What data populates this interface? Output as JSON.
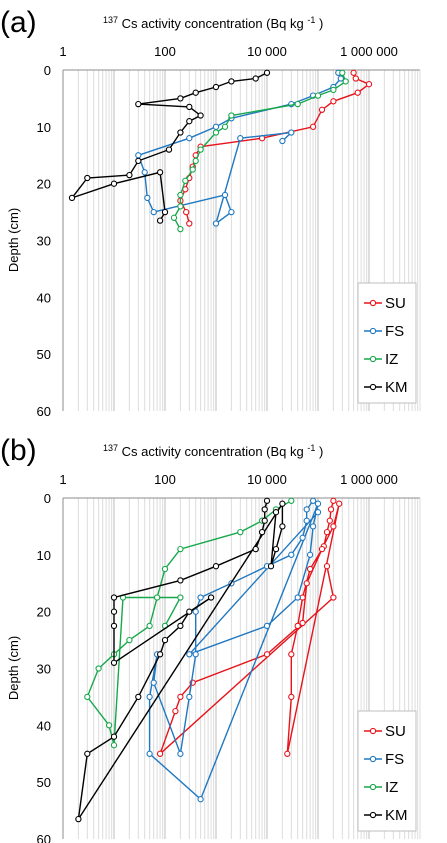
{
  "chart_data": [
    {
      "type": "scatter",
      "panel_label": "(a)",
      "title": "",
      "xlabel_pre": "137",
      "xlabel": "Cs activity concentration (Bq kg",
      "xlabel_sup": "-1",
      "xlabel_post": ")",
      "ylabel": "Depth (cm)",
      "xscale": "log",
      "xlim": [
        1,
        10000000
      ],
      "ylim": [
        0,
        60
      ],
      "y_inverted": true,
      "xticks": [
        {
          "value": 1,
          "label": "1"
        },
        {
          "value": 100,
          "label": "100"
        },
        {
          "value": 10000,
          "label": "10 000"
        },
        {
          "value": 1000000,
          "label": "1 000 000"
        }
      ],
      "yticks": [
        "0",
        "10",
        "20",
        "30",
        "40",
        "50",
        "60"
      ],
      "grid": "vertical log grid",
      "legend": "bottom-right",
      "series": [
        {
          "name": "SU",
          "color": "#e8131b",
          "points": [
            [
              500000,
              0.5
            ],
            [
              550000,
              1.5
            ],
            [
              1000000,
              2.5
            ],
            [
              600000,
              4
            ],
            [
              200000,
              5.5
            ],
            [
              120000,
              7
            ],
            [
              80000,
              10
            ],
            [
              8000,
              12
            ],
            [
              500,
              13.5
            ],
            [
              400,
              15
            ],
            [
              350,
              17
            ],
            [
              300,
              19
            ],
            [
              250,
              21
            ],
            [
              200,
              23
            ],
            [
              260,
              25
            ],
            [
              300,
              27
            ]
          ]
        },
        {
          "name": "FS",
          "color": "#1f78c1",
          "points": [
            [
              250000,
              0.5
            ],
            [
              280000,
              1.5
            ],
            [
              200000,
              3
            ],
            [
              80000,
              4.5
            ],
            [
              30000,
              6
            ],
            [
              2000,
              8.5
            ],
            [
              1000,
              10
            ],
            [
              300,
              12
            ],
            [
              30,
              15
            ],
            [
              40,
              18
            ],
            [
              45,
              22.5
            ],
            [
              60,
              25
            ],
            [
              1500,
              22
            ],
            [
              2000,
              25
            ],
            [
              1000,
              27
            ],
            [
              3000,
              12
            ],
            [
              30000,
              11
            ],
            [
              20000,
              12.5
            ]
          ]
        },
        {
          "name": "IZ",
          "color": "#17a84b",
          "points": [
            [
              300000,
              0.5
            ],
            [
              350000,
              2
            ],
            [
              200000,
              3.5
            ],
            [
              100000,
              4.5
            ],
            [
              40000,
              6
            ],
            [
              2000,
              8
            ],
            [
              1500,
              10
            ],
            [
              1000,
              11
            ],
            [
              500,
              14
            ],
            [
              400,
              16
            ],
            [
              350,
              17.5
            ],
            [
              250,
              19.5
            ],
            [
              200,
              22
            ],
            [
              200,
              24
            ],
            [
              150,
              26
            ],
            [
              200,
              28
            ]
          ]
        },
        {
          "name": "KM",
          "color": "#000000",
          "points": [
            [
              10000,
              0.5
            ],
            [
              6000,
              1.5
            ],
            [
              2000,
              2
            ],
            [
              1000,
              3
            ],
            [
              400,
              4
            ],
            [
              200,
              5
            ],
            [
              30,
              6
            ],
            [
              300,
              6.5
            ],
            [
              500,
              8
            ],
            [
              300,
              9
            ],
            [
              200,
              11
            ],
            [
              120,
              14
            ],
            [
              30,
              16
            ],
            [
              20,
              18.5
            ],
            [
              3,
              19
            ],
            [
              1.5,
              22.5
            ],
            [
              10,
              20
            ],
            [
              80,
              18
            ],
            [
              100,
              25
            ],
            [
              80,
              26.5
            ]
          ]
        }
      ]
    },
    {
      "type": "scatter",
      "panel_label": "(b)",
      "title": "",
      "xlabel_pre": "137",
      "xlabel": "Cs activity concentration (Bq kg",
      "xlabel_sup": "-1",
      "xlabel_post": ")",
      "ylabel": "Depth (cm)",
      "xscale": "log",
      "xlim": [
        1,
        10000000
      ],
      "ylim": [
        0,
        60
      ],
      "y_inverted": true,
      "xticks": [
        {
          "value": 1,
          "label": "1"
        },
        {
          "value": 100,
          "label": "100"
        },
        {
          "value": 10000,
          "label": "10 000"
        },
        {
          "value": 1000000,
          "label": "1 000 000"
        }
      ],
      "yticks": [
        "0",
        "10",
        "20",
        "30",
        "40",
        "50",
        "60"
      ],
      "grid": "vertical log grid",
      "legend": "bottom-right",
      "series": [
        {
          "name": "SU",
          "color": "#e8131b",
          "points": [
            [
              200000,
              0.5
            ],
            [
              180000,
              2
            ],
            [
              170000,
              4
            ],
            [
              150000,
              6
            ],
            [
              130000,
              8.5
            ],
            [
              70000,
              12.5
            ],
            [
              50000,
              17.5
            ],
            [
              40000,
              22.5
            ],
            [
              30000,
              27.5
            ],
            [
              30000,
              35
            ],
            [
              25000,
              45
            ],
            [
              260000,
              1
            ],
            [
              200000,
              5
            ],
            [
              120000,
              9
            ],
            [
              60000,
              15
            ],
            [
              50000,
              22
            ],
            [
              10000,
              27.5
            ],
            [
              350,
              32.5
            ],
            [
              200,
              35
            ],
            [
              160,
              37.5
            ],
            [
              80,
              45
            ],
            [
              200000,
              17.5
            ],
            [
              150000,
              12
            ]
          ]
        },
        {
          "name": "FS",
          "color": "#1f78c1",
          "points": [
            [
              80000,
              0.5
            ],
            [
              60000,
              2
            ],
            [
              60000,
              4
            ],
            [
              50000,
              7
            ],
            [
              30000,
              10
            ],
            [
              10000,
              12
            ],
            [
              2000,
              15
            ],
            [
              500,
              17.5
            ],
            [
              400,
              20
            ],
            [
              400,
              27.5
            ],
            [
              300,
              35
            ],
            [
              200,
              45
            ],
            [
              60,
              32.5
            ],
            [
              70,
              27.5
            ],
            [
              50,
              35
            ],
            [
              50,
              45
            ],
            [
              500,
              53
            ],
            [
              100000,
              1
            ],
            [
              80000,
              5
            ],
            [
              70000,
              10
            ],
            [
              40000,
              17.5
            ],
            [
              10000,
              22.5
            ],
            [
              300,
              27.5
            ],
            [
              100000,
              2.5
            ]
          ]
        },
        {
          "name": "IZ",
          "color": "#17a84b",
          "points": [
            [
              30000,
              0.5
            ],
            [
              15000,
              2
            ],
            [
              8000,
              4
            ],
            [
              3000,
              6
            ],
            [
              200,
              9
            ],
            [
              100,
              12.5
            ],
            [
              70,
              17.5
            ],
            [
              50,
              22.5
            ],
            [
              20,
              25
            ],
            [
              10,
              27.5
            ],
            [
              5,
              30
            ],
            [
              3,
              35
            ],
            [
              8,
              40
            ],
            [
              10,
              43.5
            ],
            [
              15,
              17.5
            ],
            [
              200,
              17.5
            ],
            [
              100,
              22.5
            ]
          ]
        },
        {
          "name": "KM",
          "color": "#000000",
          "points": [
            [
              10000,
              0.5
            ],
            [
              9000,
              2
            ],
            [
              9000,
              4
            ],
            [
              8000,
              6
            ],
            [
              6000,
              9
            ],
            [
              1000,
              12
            ],
            [
              200,
              14.5
            ],
            [
              10,
              17.5
            ],
            [
              10,
              20
            ],
            [
              10,
              22.5
            ],
            [
              10,
              29
            ],
            [
              800,
              17.5
            ],
            [
              300,
              20
            ],
            [
              200,
              22.5
            ],
            [
              100,
              25
            ],
            [
              80,
              27.5
            ],
            [
              30,
              35
            ],
            [
              10,
              42
            ],
            [
              3,
              45
            ],
            [
              2,
              56.5
            ],
            [
              20000,
              1
            ],
            [
              20000,
              5
            ],
            [
              15000,
              9
            ],
            [
              12000,
              12
            ],
            [
              15000,
              2.5
            ]
          ]
        }
      ]
    }
  ]
}
